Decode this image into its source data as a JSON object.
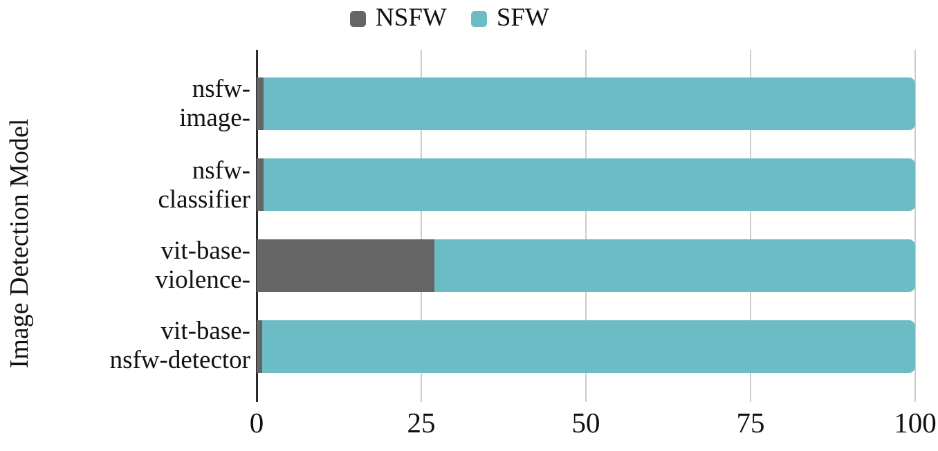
{
  "chart_data": {
    "type": "bar",
    "orientation": "horizontal",
    "stacked": true,
    "title": "",
    "ylabel": "Image Detection Model",
    "xlabel": "",
    "xlim": [
      0,
      100
    ],
    "xticks": [
      "0",
      "25",
      "50",
      "75",
      "100"
    ],
    "grid": true,
    "legend_position": "top-center",
    "categories": [
      "nsfw-image-",
      "nsfw-classifier",
      "vit-base-violence-",
      "vit-base-nsfw-detector"
    ],
    "category_display_lines": [
      [
        "nsfw-",
        "image-"
      ],
      [
        "nsfw-",
        "classifier"
      ],
      [
        "vit-base-",
        "violence-"
      ],
      [
        "vit-base-",
        "nsfw-detector"
      ]
    ],
    "series": [
      {
        "name": "NSFW",
        "color": "#656565",
        "values": [
          1,
          1,
          27,
          0.8
        ]
      },
      {
        "name": "SFW",
        "color": "#6bbcc4",
        "values": [
          99,
          99,
          73,
          99.2
        ]
      }
    ],
    "colors": {
      "axis_line": "#2b2b2b",
      "gridline": "#cccccc",
      "text": "#111111",
      "background": "#ffffff"
    }
  }
}
